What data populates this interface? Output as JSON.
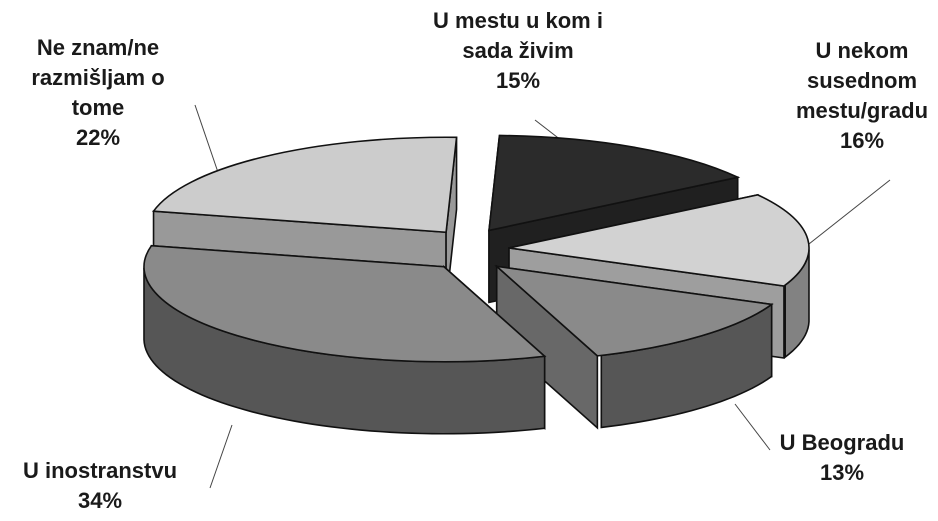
{
  "chart_data": {
    "type": "pie",
    "style": "3d-exploded",
    "title": "",
    "slices": [
      {
        "label_lines": [
          "U mestu u kom i",
          "sada živim"
        ],
        "value": 15,
        "value_label": "15%",
        "color": "#2b2b2b"
      },
      {
        "label_lines": [
          "U nekom",
          "susednom",
          "mestu/gradu"
        ],
        "value": 16,
        "value_label": "16%",
        "color": "#d2d2d2"
      },
      {
        "label_lines": [
          "U Beogradu"
        ],
        "value": 13,
        "value_label": "13%",
        "color": "#8a8a8a"
      },
      {
        "label_lines": [
          "U inostranstvu"
        ],
        "value": 34,
        "value_label": "34%",
        "color": "#8a8a8a"
      },
      {
        "label_lines": [
          "Ne znam/ne",
          "razmišljam o",
          "tome"
        ],
        "value": 22,
        "value_label": "22%",
        "color": "#cccccc"
      }
    ]
  }
}
